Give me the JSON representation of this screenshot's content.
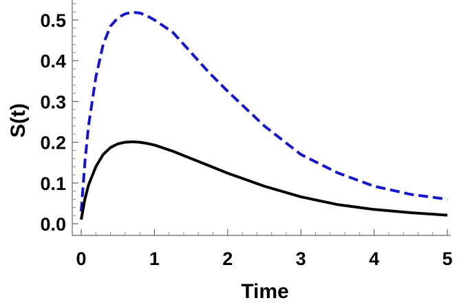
{
  "chart_data": {
    "type": "line",
    "title": "",
    "xlabel": "Time",
    "ylabel": "S(t)",
    "xlim": [
      0,
      5
    ],
    "ylim": [
      0,
      0.55
    ],
    "x_ticks": [
      0,
      1,
      2,
      3,
      4,
      5
    ],
    "x_tick_labels": [
      "0",
      "1",
      "2",
      "3",
      "4",
      "5"
    ],
    "y_ticks": [
      0.0,
      0.1,
      0.2,
      0.3,
      0.4,
      0.5
    ],
    "y_tick_labels": [
      "0.0",
      "0.1",
      "0.2",
      "0.3",
      "0.4",
      "0.5"
    ],
    "grid": false,
    "legend": "none",
    "series": [
      {
        "color": "#1414d2",
        "style": "dashed",
        "x": [
          0,
          0.05,
          0.1,
          0.2,
          0.3,
          0.4,
          0.5,
          0.6,
          0.7,
          0.8,
          0.9,
          1.0,
          1.25,
          1.5,
          1.75,
          2.0,
          2.5,
          3.0,
          3.5,
          4.0,
          4.5,
          5.0
        ],
        "y": [
          0.03,
          0.15,
          0.24,
          0.36,
          0.44,
          0.485,
          0.505,
          0.515,
          0.519,
          0.517,
          0.51,
          0.5,
          0.47,
          0.42,
          0.37,
          0.325,
          0.24,
          0.17,
          0.125,
          0.092,
          0.072,
          0.06
        ]
      },
      {
        "color": "#000000",
        "style": "solid",
        "x": [
          0,
          0.05,
          0.1,
          0.2,
          0.3,
          0.4,
          0.5,
          0.6,
          0.7,
          0.8,
          0.9,
          1.0,
          1.25,
          1.5,
          1.75,
          2.0,
          2.5,
          3.0,
          3.5,
          4.0,
          4.5,
          5.0
        ],
        "y": [
          0.01,
          0.06,
          0.095,
          0.14,
          0.17,
          0.187,
          0.196,
          0.2,
          0.201,
          0.2,
          0.197,
          0.193,
          0.178,
          0.16,
          0.142,
          0.124,
          0.092,
          0.066,
          0.047,
          0.035,
          0.027,
          0.021
        ]
      }
    ]
  }
}
